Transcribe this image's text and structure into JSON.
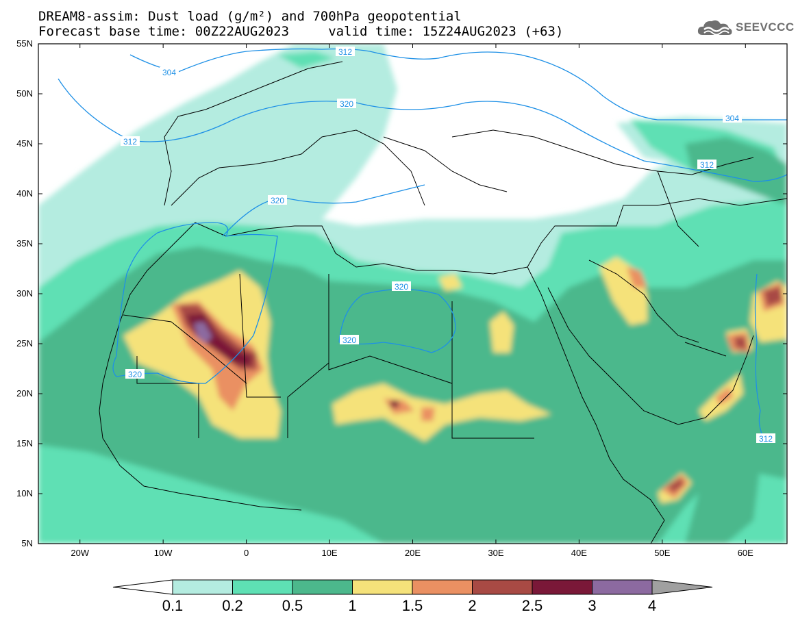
{
  "title": {
    "line1": "DREAM8-assim: Dust load (g/m²) and 700hPa geopotential",
    "line2": "Forecast base time: 00Z22AUG2023     valid time: 15Z24AUG2023 (+63)"
  },
  "logo": {
    "text": "SEEVCCC",
    "icon": "cloud-icon"
  },
  "map": {
    "lon_range": [
      -25,
      65
    ],
    "lat_range": [
      5,
      55
    ],
    "lat_labels": [
      "55N",
      "50N",
      "45N",
      "40N",
      "35N",
      "30N",
      "25N",
      "20N",
      "15N",
      "10N",
      "5N"
    ],
    "lon_labels": [
      "20W",
      "10W",
      "0",
      "10E",
      "20E",
      "30E",
      "40E",
      "50E",
      "60E"
    ],
    "contour_color": "#1e90e6",
    "contour_labels": [
      "312",
      "304",
      "320",
      "312",
      "320",
      "320",
      "320",
      "320",
      "304",
      "312",
      "312"
    ]
  },
  "colorbar": {
    "labels": [
      "0.1",
      "0.2",
      "0.5",
      "1",
      "1.5",
      "2",
      "2.5",
      "3",
      "4"
    ],
    "colors": [
      "#ffffff",
      "#b4ece0",
      "#5ee0b4",
      "#4cb88c",
      "#f5e27a",
      "#ea9062",
      "#a84a44",
      "#7a1838",
      "#8c6aa0",
      "#a0a0a0"
    ]
  }
}
